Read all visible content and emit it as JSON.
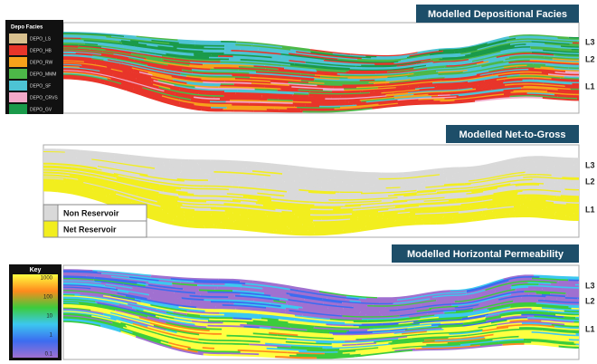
{
  "panels": [
    {
      "title": "Modelled Depositional Facies",
      "legend": {
        "title": "Depo Facies",
        "items": [
          {
            "label": "DEPO_LS",
            "color": "#d8c08e"
          },
          {
            "label": "DEPO_HB",
            "color": "#e8352a"
          },
          {
            "label": "DEPO_RW",
            "color": "#f7a21b"
          },
          {
            "label": "DEPO_MMM",
            "color": "#4db848"
          },
          {
            "label": "DEPO_SF",
            "color": "#4dc3d4"
          },
          {
            "label": "DEPO_CRVS",
            "color": "#f2a9c9"
          },
          {
            "label": "DEPO_GV",
            "color": "#1a9a4a"
          }
        ]
      },
      "layers": [
        "L3",
        "L2",
        "L1"
      ]
    },
    {
      "title": "Modelled Net-to-Gross",
      "legend": {
        "items": [
          {
            "label": "Non Reservoir",
            "color": "#d9d9d9"
          },
          {
            "label": "Net Reservoir",
            "color": "#f2ee1e"
          }
        ]
      },
      "layers": [
        "L3",
        "L2",
        "L1"
      ]
    },
    {
      "title": "Modelled Horizontal Permeability",
      "legend": {
        "title": "Key",
        "ticks": [
          1000,
          100,
          10,
          1,
          0.1
        ],
        "colors": [
          "#ffff40",
          "#ff8a1c",
          "#3ccc3c",
          "#3cc8f0",
          "#3c6cf0",
          "#a070d0"
        ]
      },
      "layers": [
        "L3",
        "L2",
        "L1"
      ]
    }
  ]
}
